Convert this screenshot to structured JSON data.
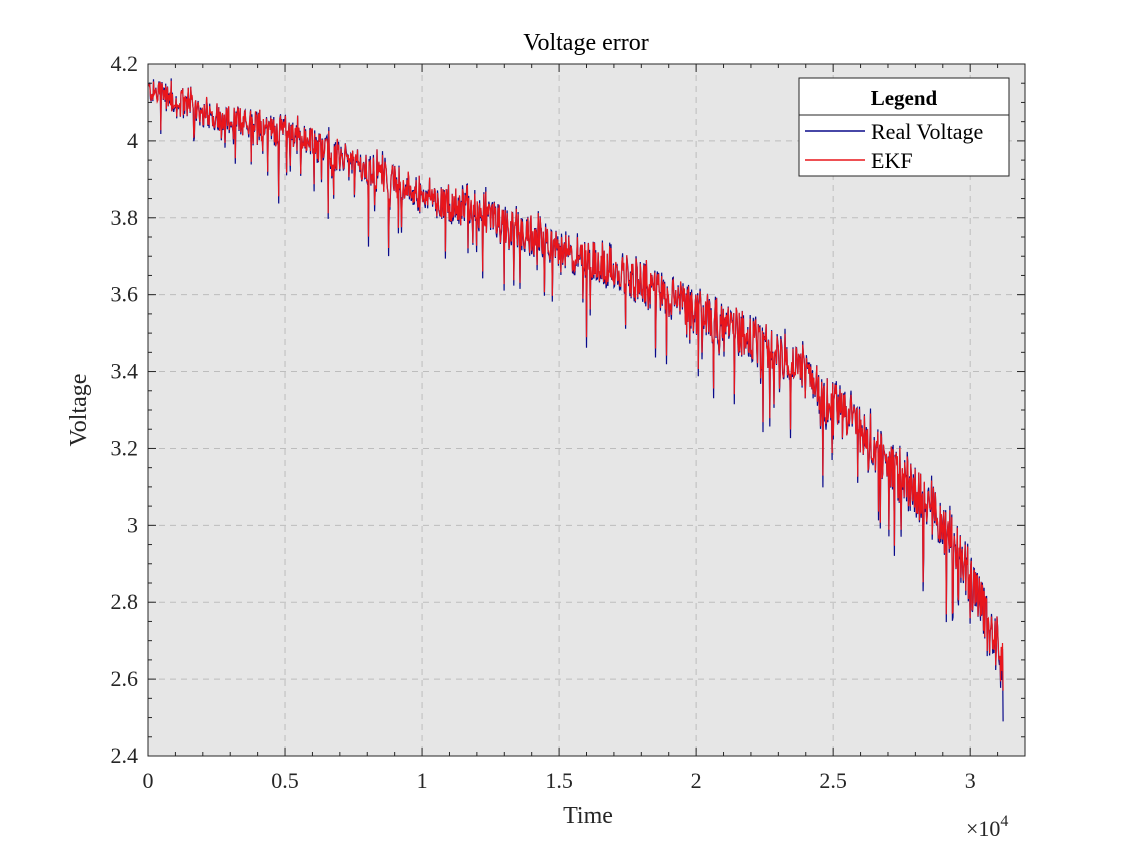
{
  "chart_data": {
    "type": "line",
    "title": "Voltage error",
    "xlabel": "Time",
    "ylabel": "Voltage",
    "x_exponent_label": "×10",
    "x_exponent_power": "4",
    "xlim": [
      0,
      32000
    ],
    "ylim": [
      2.4,
      4.2
    ],
    "grid": true,
    "legend_position": "top-right",
    "legend_title": "Legend",
    "x_ticks": [
      0,
      5000,
      10000,
      15000,
      20000,
      25000,
      30000
    ],
    "x_tick_labels": [
      "0",
      "0.5",
      "1",
      "1.5",
      "2",
      "2.5",
      "3"
    ],
    "y_ticks": [
      2.4,
      2.6,
      2.8,
      3.0,
      3.2,
      3.4,
      3.6,
      3.8,
      4.0,
      4.2
    ],
    "y_tick_labels": [
      "2.4",
      "2.6",
      "2.8",
      "3",
      "3.2",
      "3.4",
      "3.6",
      "3.8",
      "4",
      "4.2"
    ],
    "x": [
      0,
      2000,
      4000,
      6000,
      8000,
      10000,
      12000,
      14000,
      16000,
      18000,
      20000,
      22000,
      24000,
      25000,
      26000,
      27000,
      28000,
      29000,
      30000,
      31000,
      31200
    ],
    "series": [
      {
        "name": "Real Voltage",
        "color": "#0a0a8a",
        "values": [
          4.14,
          4.08,
          4.05,
          4.0,
          3.93,
          3.87,
          3.82,
          3.76,
          3.7,
          3.64,
          3.57,
          3.5,
          3.4,
          3.33,
          3.25,
          3.17,
          3.1,
          3.02,
          2.88,
          2.7,
          2.62
        ],
        "min_value": 2.49
      },
      {
        "name": "EKF",
        "color": "#e8161c",
        "values": [
          4.14,
          4.08,
          4.05,
          4.0,
          3.93,
          3.87,
          3.82,
          3.76,
          3.7,
          3.64,
          3.57,
          3.5,
          3.4,
          3.33,
          3.25,
          3.17,
          3.1,
          3.02,
          2.88,
          2.7,
          2.64
        ],
        "min_value": 2.57
      }
    ]
  }
}
